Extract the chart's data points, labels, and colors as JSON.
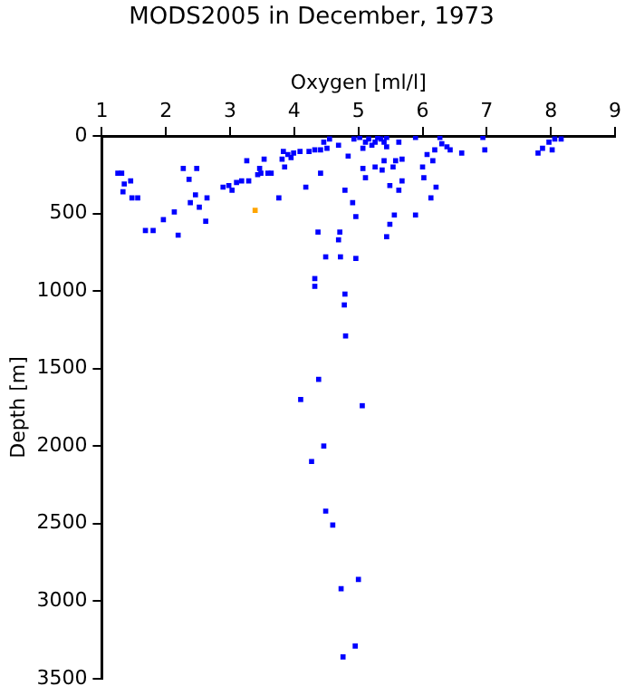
{
  "chart_data": {
    "type": "scatter",
    "title": "MODS2005 in December, 1973",
    "xlabel": "Oxygen [ml/l]",
    "ylabel": "Depth [m]",
    "xlim": [
      1,
      9
    ],
    "xticks": [
      1,
      2,
      3,
      4,
      5,
      6,
      7,
      8,
      9
    ],
    "ylim": [
      3500,
      0
    ],
    "yticks": [
      0,
      500,
      1000,
      1500,
      2000,
      2500,
      3000,
      3500
    ],
    "grid": false,
    "legend": false,
    "marker": "square",
    "series": [
      {
        "color": "#0000ff",
        "x": [
          1.25,
          1.31,
          1.35,
          1.33,
          1.45,
          1.47,
          1.56,
          1.68,
          1.8,
          1.96,
          2.13,
          2.19,
          2.27,
          2.36,
          2.38,
          2.46,
          2.48,
          2.52,
          2.62,
          2.64,
          2.89,
          2.98,
          3.03,
          3.1,
          3.18,
          3.26,
          3.29,
          3.43,
          3.46,
          3.48,
          3.53,
          3.59,
          3.64,
          3.76,
          3.81,
          3.85,
          3.9,
          3.83,
          3.95,
          3.99,
          4.09,
          4.18,
          4.23,
          4.32,
          4.41,
          4.41,
          4.46,
          4.51,
          4.55,
          4.69,
          4.79,
          4.91,
          4.96,
          4.84,
          4.93,
          5.02,
          5.07,
          5.11,
          5.16,
          5.21,
          5.26,
          5.3,
          5.35,
          5.4,
          5.44,
          5.07,
          5.11,
          5.26,
          5.37,
          5.4,
          5.44,
          5.49,
          5.54,
          5.58,
          5.63,
          5.68,
          5.63,
          5.56,
          5.49,
          5.44,
          5.68,
          5.89,
          5.89,
          6.0,
          6.02,
          6.07,
          6.16,
          6.13,
          6.21,
          6.19,
          6.27,
          6.3,
          6.38,
          6.43,
          6.61,
          6.94,
          6.97,
          7.8,
          7.87,
          7.97,
          8.02,
          8.06,
          8.16,
          4.37,
          4.71,
          4.69,
          4.49,
          4.72,
          4.96,
          4.32,
          4.32,
          4.79,
          4.78,
          4.8,
          4.38,
          4.1,
          5.06,
          4.46,
          4.27,
          4.49,
          4.6,
          5.0,
          4.73,
          4.95,
          4.76
        ],
        "values": [
          240,
          240,
          310,
          360,
          290,
          400,
          400,
          610,
          610,
          540,
          490,
          640,
          210,
          280,
          430,
          380,
          210,
          460,
          550,
          400,
          330,
          320,
          350,
          300,
          290,
          160,
          290,
          250,
          210,
          240,
          150,
          240,
          240,
          400,
          150,
          200,
          120,
          100,
          140,
          110,
          100,
          330,
          100,
          90,
          240,
          90,
          40,
          80,
          20,
          60,
          350,
          430,
          520,
          130,
          20,
          10,
          80,
          40,
          20,
          60,
          40,
          10,
          20,
          40,
          10,
          210,
          270,
          200,
          220,
          160,
          70,
          320,
          200,
          160,
          40,
          290,
          350,
          510,
          570,
          650,
          150,
          510,
          10,
          200,
          270,
          120,
          160,
          400,
          330,
          90,
          10,
          50,
          70,
          90,
          110,
          10,
          90,
          110,
          80,
          40,
          90,
          20,
          20,
          620,
          620,
          670,
          780,
          780,
          790,
          920,
          970,
          1020,
          1090,
          1290,
          1570,
          1700,
          1740,
          2000,
          2100,
          2420,
          2510,
          2860,
          2920,
          3290,
          3360
        ]
      },
      {
        "color": "#ffa500",
        "x": [
          3.39
        ],
        "values": [
          480
        ]
      }
    ]
  }
}
